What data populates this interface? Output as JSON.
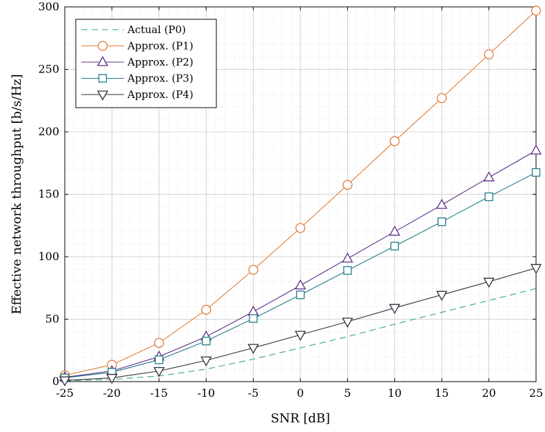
{
  "chart_data": {
    "type": "line",
    "title": "",
    "xlabel": "SNR [dB]",
    "ylabel": "Effective network throughput [b/s/Hz]",
    "x": [
      -25,
      -20,
      -15,
      -10,
      -5,
      0,
      5,
      10,
      15,
      20,
      25
    ],
    "x_ticks": [
      "-25",
      "-20",
      "-15",
      "-10",
      "-5",
      "0",
      "5",
      "10",
      "15",
      "20",
      "25"
    ],
    "y_ticks": [
      "0",
      "50",
      "100",
      "150",
      "200",
      "250",
      "300"
    ],
    "xlim": [
      -25,
      25
    ],
    "ylim": [
      0,
      300
    ],
    "grid": true,
    "legend_position": "top-left",
    "series": [
      {
        "name": "Actual (P0)",
        "color": "#2ca87a",
        "line_style": "dashed",
        "marker": "none",
        "x": [
          -25,
          -20,
          -15,
          -10,
          -5,
          0,
          5,
          10,
          15,
          20,
          25
        ],
        "values": [
          0.6,
          1.8,
          4.5,
          10,
          18,
          27,
          36,
          46,
          55.5,
          65,
          74.5
        ]
      },
      {
        "name": "Approx. (P1)",
        "color": "#e07b39",
        "line_style": "solid",
        "marker": "circle",
        "values": [
          5,
          13.5,
          31,
          57.5,
          89.5,
          123,
          157.5,
          192.5,
          227,
          262,
          297
        ]
      },
      {
        "name": "Approx. (P2)",
        "color": "#5b2c86",
        "line_style": "solid",
        "marker": "triangle-up",
        "values": [
          3.5,
          8.5,
          20,
          36,
          56,
          77,
          98.5,
          120,
          141.5,
          163.5,
          185
        ]
      },
      {
        "name": "Approx. (P3)",
        "color": "#1e7a8a",
        "line_style": "solid",
        "marker": "square",
        "values": [
          3,
          7.5,
          17.5,
          32.5,
          50.5,
          69.5,
          89,
          108.5,
          128,
          148,
          167.5
        ]
      },
      {
        "name": "Approx. (P4)",
        "color": "#2e2e3a",
        "line_style": "solid",
        "marker": "triangle-down",
        "values": [
          1,
          3,
          8.5,
          17,
          27,
          37.5,
          48,
          59,
          69.5,
          80,
          91
        ]
      }
    ]
  }
}
